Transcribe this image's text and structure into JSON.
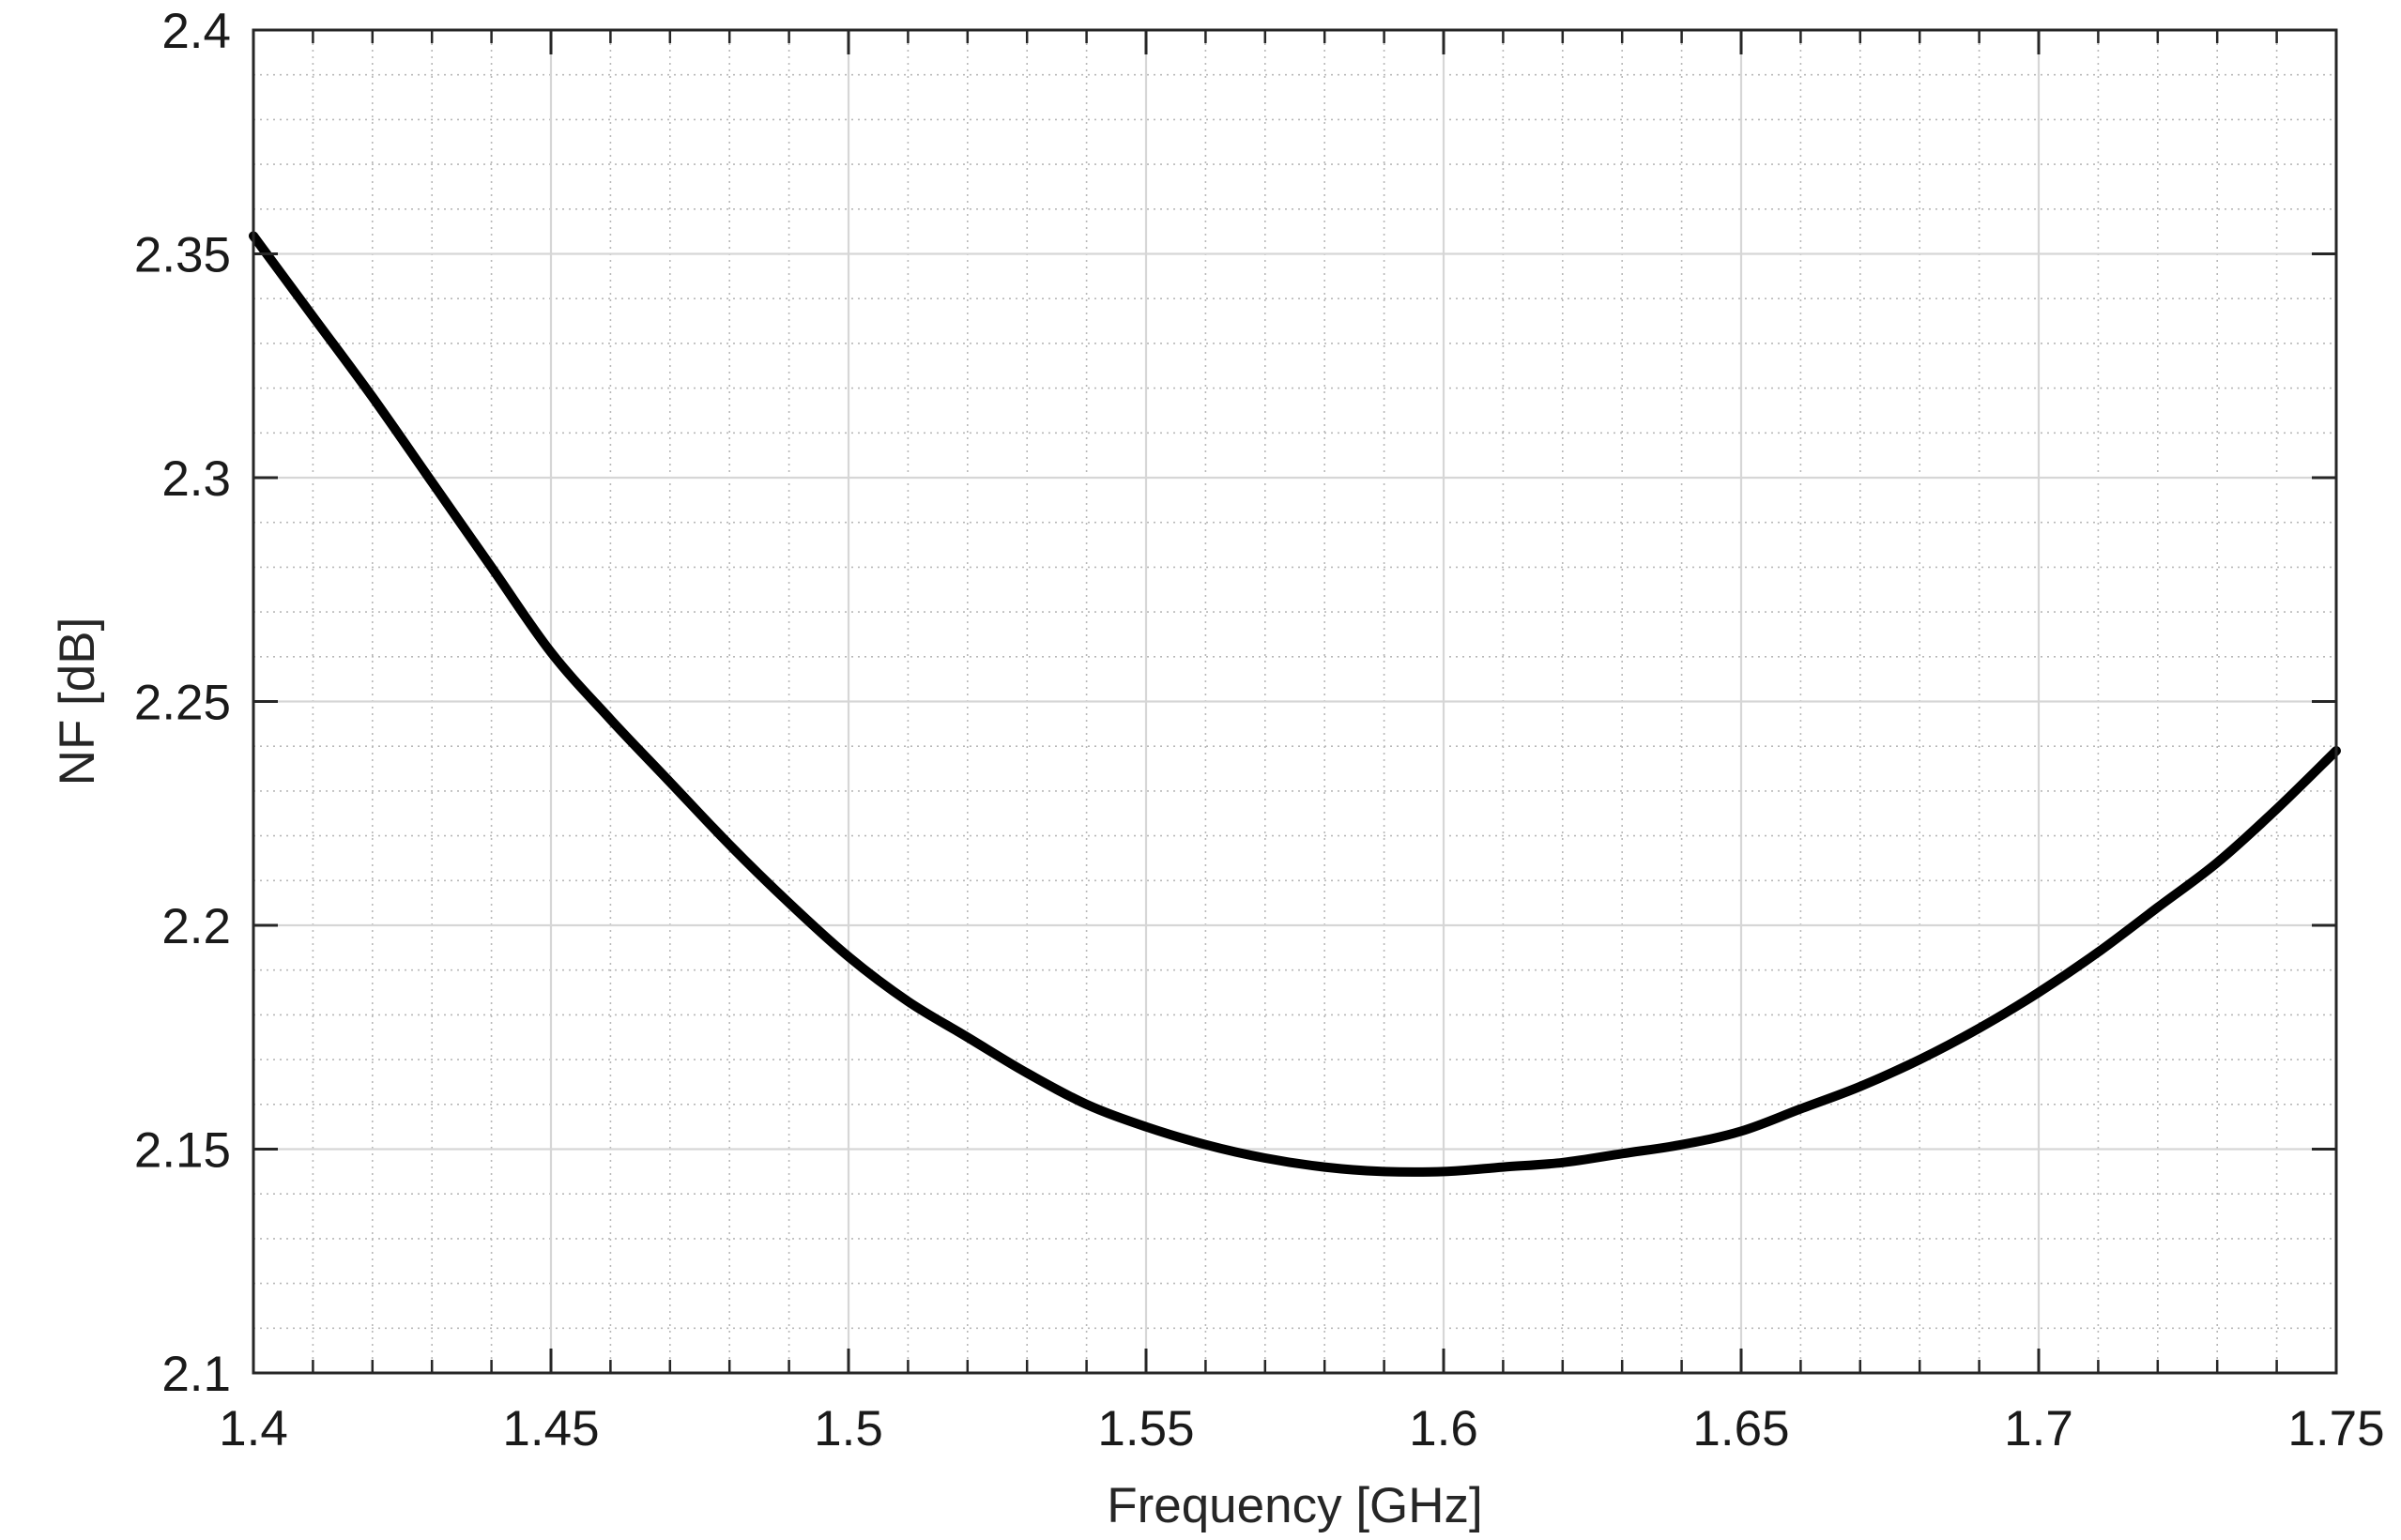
{
  "chart_data": {
    "type": "line",
    "title": "",
    "xlabel": "Frequency [GHz]",
    "ylabel": "NF [dB]",
    "xlim": [
      1.4,
      1.75
    ],
    "ylim": [
      2.1,
      2.4
    ],
    "x_ticks": [
      1.4,
      1.45,
      1.5,
      1.55,
      1.6,
      1.65,
      1.7,
      1.75
    ],
    "x_tick_labels": [
      "1.4",
      "1.45",
      "1.5",
      "1.55",
      "1.6",
      "1.65",
      "1.7",
      "1.75"
    ],
    "y_ticks": [
      2.1,
      2.15,
      2.2,
      2.25,
      2.3,
      2.35,
      2.4
    ],
    "y_tick_labels": [
      "2.1",
      "2.15",
      "2.2",
      "2.25",
      "2.3",
      "2.35",
      "2.4"
    ],
    "x_minor_step": 0.01,
    "y_minor_step": 0.01,
    "grid": true,
    "minor_grid": true,
    "legend": "none",
    "series": [
      {
        "color": "#000000",
        "x": [
          1.4,
          1.41,
          1.42,
          1.43,
          1.44,
          1.45,
          1.46,
          1.47,
          1.48,
          1.49,
          1.5,
          1.51,
          1.52,
          1.53,
          1.54,
          1.55,
          1.56,
          1.57,
          1.58,
          1.59,
          1.6,
          1.61,
          1.62,
          1.63,
          1.64,
          1.65,
          1.66,
          1.67,
          1.68,
          1.69,
          1.7,
          1.71,
          1.72,
          1.73,
          1.74,
          1.75
        ],
        "y": [
          2.354,
          2.336,
          2.318,
          2.299,
          2.28,
          2.261,
          2.246,
          2.232,
          2.218,
          2.205,
          2.193,
          2.183,
          2.175,
          2.167,
          2.16,
          2.155,
          2.151,
          2.148,
          2.146,
          2.145,
          2.145,
          2.146,
          2.147,
          2.149,
          2.151,
          2.154,
          2.159,
          2.164,
          2.17,
          2.177,
          2.185,
          2.194,
          2.204,
          2.214,
          2.226,
          2.239
        ]
      }
    ]
  }
}
